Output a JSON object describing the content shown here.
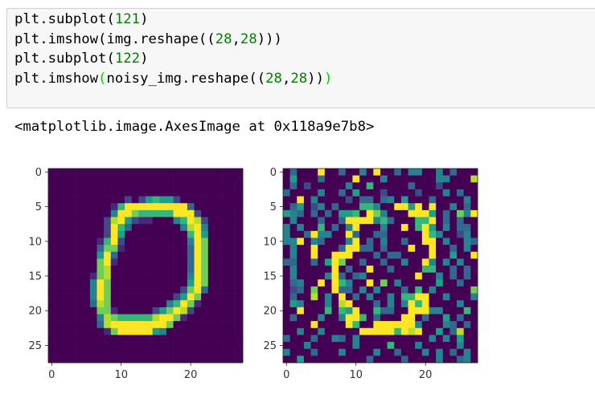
{
  "code_cell": {
    "lines": [
      [
        {
          "t": "plt.subplot(",
          "k": "txt"
        },
        {
          "t": "121",
          "k": "num"
        },
        {
          "t": ")",
          "k": "txt"
        }
      ],
      [
        {
          "t": "plt.imshow(img.reshape((",
          "k": "txt"
        },
        {
          "t": "28",
          "k": "num"
        },
        {
          "t": ",",
          "k": "txt"
        },
        {
          "t": "28",
          "k": "num"
        },
        {
          "t": ")))",
          "k": "txt"
        }
      ],
      [
        {
          "t": "plt.subplot(",
          "k": "txt"
        },
        {
          "t": "122",
          "k": "num"
        },
        {
          "t": ")",
          "k": "txt"
        }
      ],
      [
        {
          "t": "plt.imshow",
          "k": "txt"
        },
        {
          "t": "(",
          "k": "match"
        },
        {
          "t": "noisy_img.reshape((",
          "k": "txt"
        },
        {
          "t": "28",
          "k": "num"
        },
        {
          "t": ",",
          "k": "txt"
        },
        {
          "t": "28",
          "k": "num"
        },
        {
          "t": "))",
          "k": "txt"
        },
        {
          "t": ")",
          "k": "match"
        }
      ]
    ]
  },
  "output": {
    "text": "<matplotlib.image.AxesImage at 0x118a9e7b8>"
  },
  "colors": {
    "number": "#008000",
    "bracket_match": "#00d000",
    "cell_bg": "#f7f7f7"
  },
  "chart_data": [
    {
      "type": "heatmap",
      "colormap": "viridis",
      "levels": 10,
      "xlim": [
        -0.5,
        27.5
      ],
      "ylim": [
        27.5,
        -0.5
      ],
      "xticks": [
        "0",
        "10",
        "20"
      ],
      "yticks": [
        "0",
        "5",
        "10",
        "15",
        "20",
        "25"
      ],
      "rows": [
        "0000000000000000000000000000",
        "0000000000000000000000000000",
        "0000000000000000000000000000",
        "0000000000000000000000000000",
        "0000000000020256552000000000",
        "0000000001699999999930000000",
        "0000000004997666669992000000",
        "0000000028952110004698200000",
        "0000000029630000000489400000",
        "0000000029500000000069500000",
        "0000000169200000000049700000",
        "0000000377100000000039700000",
        "0000000593000000000039700000",
        "0000000791000000000039700000",
        "0000000780000000000039700000",
        "0000001780000000000049700000",
        "0000004970000000000059700000",
        "0000004970000000000279300000",
        "0000004970000000002597000000",
        "0000003870000000046971000000",
        "0000000771000002579820000000",
        "0000000487666668997100000000",
        "0000000389999999970000000000",
        "0000000017999995400000000000",
        "0000000000000000000000000000",
        "0000000000000000000000000000",
        "0000000000000000000000000000",
        "0000000000000000000000000000"
      ]
    },
    {
      "type": "heatmap",
      "colormap": "viridis",
      "levels": 10,
      "xlim": [
        -0.5,
        27.5
      ],
      "ylim": [
        27.5,
        -0.5
      ],
      "xticks": [
        "0",
        "10",
        "20"
      ],
      "yticks": [
        "0",
        "5",
        "10",
        "15",
        "20",
        "25"
      ],
      "rows": [
        "0300090030040900304400403000",
        "0500030000900040000000440008",
        "0302000004006000003000200000",
        "3000040030500020000200040300",
        "0090400002033034050003000040",
        "0350240300066400995909004030",
        "5430303055609740009995030749",
        "0400030039999463000669030300",
        "4040060304900040090695040330",
        "4003944009300330000096400240",
        "4490430004903040030099040043",
        "0400900039933030009009003040",
        "0400900999000303300009005009",
        "3300305970030030040094040400",
        "0400000903009003000066003030",
        "0400004930340000000900403030",
        "0340090964009070400000500300",
        "0230700933040400030604000007",
        "0300804090304004066990040004",
        "0540004089000304049690000400",
        "0090006065900633009994400060",
        "0300040049960300099030050300",
        "0000900009600999999400043030",
        "0040040000099999698900503800",
        "3000300430400000000004040500",
        "0004000000400006000400000400",
        "4000300040000400300040403040",
        "0050000000003000030000400340"
      ]
    }
  ]
}
